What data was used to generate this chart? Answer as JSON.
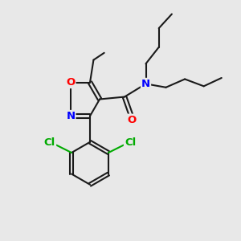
{
  "background_color": "#e8e8e8",
  "atom_colors": {
    "O": "#ff0000",
    "N": "#0000ff",
    "Cl": "#00aa00",
    "C": "#1a1a1a"
  },
  "bond_color": "#1a1a1a",
  "figsize": [
    3.0,
    3.0
  ],
  "dpi": 100
}
